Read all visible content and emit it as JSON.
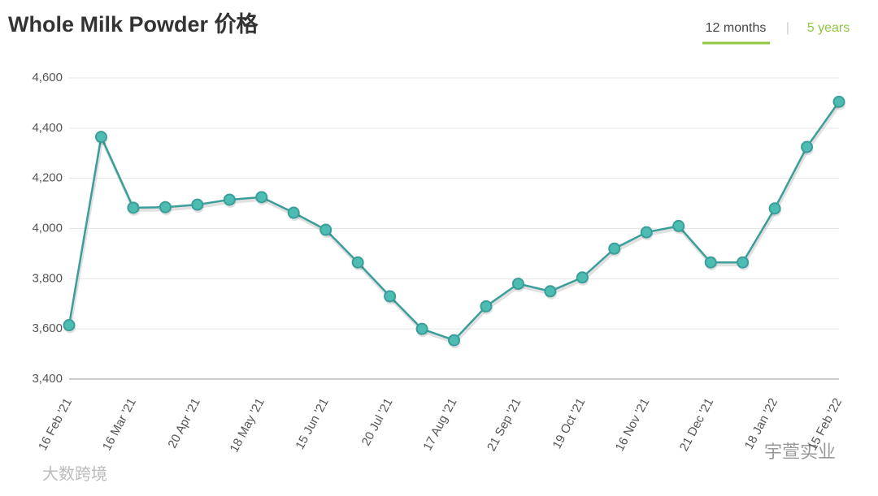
{
  "header": {
    "title": "Whole Milk Powder 价格",
    "tabs": [
      "12 months",
      "5 years"
    ],
    "separator": "|"
  },
  "watermarks": [
    "大数跨境",
    "宇萱实业"
  ],
  "chart_data": {
    "type": "line",
    "categories": [
      "16 Feb '21",
      null,
      "16 Mar '21",
      null,
      "20 Apr '21",
      null,
      "18 May '21",
      null,
      "15 Jun '21",
      null,
      "20 Jul '21",
      null,
      "17 Aug '21",
      null,
      "21 Sep '21",
      null,
      "19 Oct '21",
      null,
      "16 Nov '21",
      null,
      "21 Dec '21",
      null,
      "18 Jan '22",
      null,
      "15 Feb '22"
    ],
    "series": [
      {
        "name": "Whole Milk Powder",
        "color": "#3a9e9a",
        "values": [
          3615,
          4365,
          4083,
          4085,
          4095,
          4115,
          4125,
          4063,
          3995,
          3865,
          3730,
          3600,
          3555,
          3690,
          3780,
          3750,
          3805,
          3920,
          3985,
          4010,
          3865,
          3865,
          4080,
          4325,
          4505
        ]
      }
    ],
    "ylim": [
      3400,
      4600
    ],
    "yticks": [
      {
        "value": 3400,
        "label": "3,400"
      },
      {
        "value": 3600,
        "label": "3,600"
      },
      {
        "value": 3800,
        "label": "3,800"
      },
      {
        "value": 4000,
        "label": "4,000"
      },
      {
        "value": 4200,
        "label": "4,200"
      },
      {
        "value": 4400,
        "label": "4,400"
      },
      {
        "value": 4600,
        "label": "4,600"
      }
    ],
    "grid": true
  }
}
